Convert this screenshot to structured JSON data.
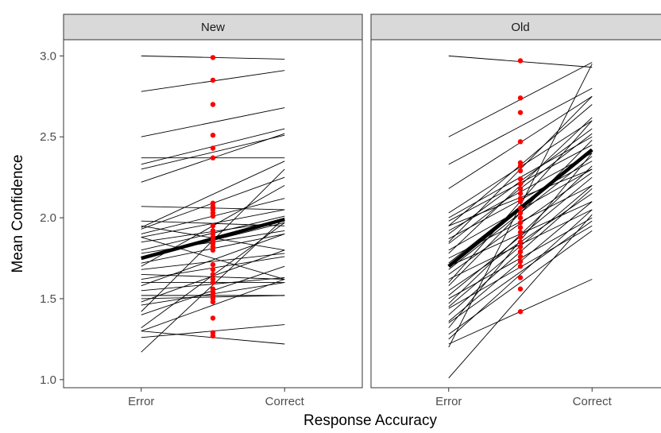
{
  "chart_data": {
    "type": "line",
    "xlabel": "Response Accuracy",
    "ylabel": "Mean Confidence",
    "categories": [
      "Error",
      "Correct"
    ],
    "ylim": [
      0.95,
      3.1
    ],
    "yticks": [
      "1.0",
      "1.5",
      "2.0",
      "2.5",
      "3.0"
    ],
    "grid": false,
    "colors": {
      "lines": "#000000",
      "points": "#ff0000",
      "strip": "#d9d9d9"
    },
    "panels": [
      {
        "name": "New",
        "mean_line": {
          "error": 1.75,
          "correct": 1.99
        },
        "midpoints": [
          2.99,
          2.85,
          2.7,
          2.51,
          2.43,
          2.37,
          2.09,
          2.07,
          2.05,
          2.03,
          2.01,
          1.95,
          1.92,
          1.9,
          1.88,
          1.86,
          1.84,
          1.82,
          1.8,
          1.71,
          1.68,
          1.65,
          1.62,
          1.6,
          1.56,
          1.54,
          1.52,
          1.5,
          1.48,
          1.38,
          1.29,
          1.27
        ],
        "lines": [
          [
            3.0,
            2.98
          ],
          [
            2.78,
            2.91
          ],
          [
            2.5,
            2.68
          ],
          [
            2.33,
            2.55
          ],
          [
            2.3,
            2.51
          ],
          [
            2.37,
            2.37
          ],
          [
            2.22,
            2.52
          ],
          [
            2.07,
            2.05
          ],
          [
            1.94,
            2.35
          ],
          [
            1.93,
            2.25
          ],
          [
            1.9,
            2.12
          ],
          [
            1.88,
            2.05
          ],
          [
            1.85,
            1.98
          ],
          [
            1.8,
            2.01
          ],
          [
            1.78,
            1.92
          ],
          [
            1.75,
            1.97
          ],
          [
            1.72,
            1.9
          ],
          [
            1.95,
            1.8
          ],
          [
            1.7,
            2.2
          ],
          [
            1.68,
            1.78
          ],
          [
            1.65,
            1.62
          ],
          [
            1.62,
            1.76
          ],
          [
            1.6,
            1.6
          ],
          [
            1.58,
            1.9
          ],
          [
            1.55,
            1.63
          ],
          [
            1.52,
            1.52
          ],
          [
            1.5,
            1.52
          ],
          [
            1.48,
            1.8
          ],
          [
            1.46,
            1.6
          ],
          [
            1.42,
            2.3
          ],
          [
            1.4,
            1.7
          ],
          [
            1.3,
            1.62
          ],
          [
            1.3,
            1.22
          ],
          [
            1.26,
            1.34
          ],
          [
            1.17,
            2.0
          ],
          [
            1.32,
            1.97
          ],
          [
            1.88,
            1.62
          ],
          [
            1.98,
            1.95
          ]
        ]
      },
      {
        "name": "Old",
        "mean_line": {
          "error": 1.7,
          "correct": 2.42
        },
        "midpoints": [
          2.97,
          2.74,
          2.65,
          2.47,
          2.34,
          2.32,
          2.29,
          2.24,
          2.21,
          2.18,
          2.15,
          2.12,
          2.1,
          2.06,
          2.03,
          2.0,
          1.97,
          1.94,
          1.91,
          1.88,
          1.85,
          1.82,
          1.79,
          1.76,
          1.73,
          1.7,
          1.63,
          1.56,
          1.42
        ],
        "lines": [
          [
            3.0,
            2.93
          ],
          [
            2.5,
            2.96
          ],
          [
            2.33,
            2.8
          ],
          [
            2.18,
            2.75
          ],
          [
            2.03,
            2.6
          ],
          [
            2.0,
            2.5
          ],
          [
            1.98,
            2.45
          ],
          [
            1.95,
            2.7
          ],
          [
            1.92,
            2.4
          ],
          [
            1.9,
            2.55
          ],
          [
            1.87,
            2.35
          ],
          [
            1.84,
            2.52
          ],
          [
            1.8,
            2.3
          ],
          [
            1.78,
            2.62
          ],
          [
            1.75,
            2.2
          ],
          [
            1.72,
            2.42
          ],
          [
            1.7,
            2.1
          ],
          [
            1.68,
            2.38
          ],
          [
            1.65,
            2.28
          ],
          [
            1.62,
            2.05
          ],
          [
            1.58,
            2.48
          ],
          [
            1.55,
            2.15
          ],
          [
            1.52,
            2.25
          ],
          [
            1.5,
            2.0
          ],
          [
            1.47,
            2.32
          ],
          [
            1.44,
            1.95
          ],
          [
            1.4,
            2.18
          ],
          [
            1.36,
            2.1
          ],
          [
            1.32,
            2.4
          ],
          [
            1.28,
            1.92
          ],
          [
            1.25,
            2.05
          ],
          [
            1.22,
            1.62
          ],
          [
            1.2,
            2.95
          ],
          [
            1.01,
            2.02
          ],
          [
            1.45,
            2.2
          ],
          [
            1.85,
            2.75
          ],
          [
            1.6,
            2.6
          ],
          [
            1.35,
            1.98
          ],
          [
            1.95,
            2.3
          ]
        ]
      }
    ]
  }
}
